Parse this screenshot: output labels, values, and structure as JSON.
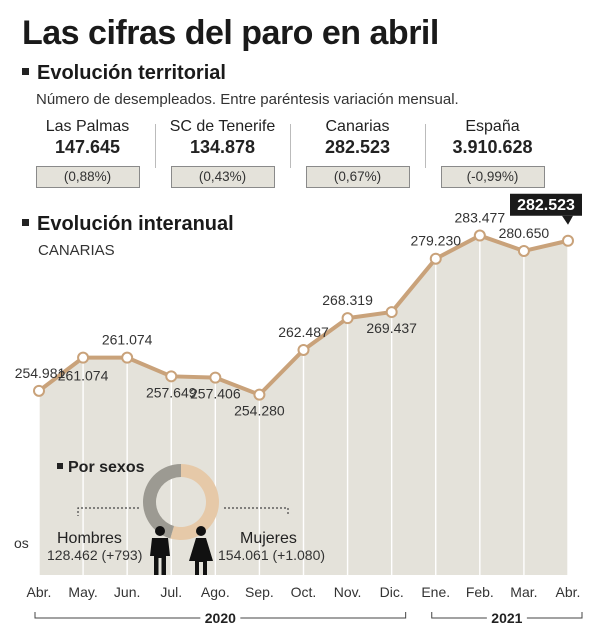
{
  "header": {
    "title": "Las cifras del paro en abril",
    "territorial_heading": "Evolución territorial",
    "territorial_sub": "Número de desempleados. Entre paréntesis variación mensual.",
    "interanual_heading": "Evolución interanual",
    "interanual_sub": "CANARIAS"
  },
  "regions": [
    {
      "name": "Las Palmas",
      "value": "147.645",
      "variation": "(0,88%)"
    },
    {
      "name": "SC de Tenerife",
      "value": "134.878",
      "variation": "(0,43%)"
    },
    {
      "name": "Canarias",
      "value": "282.523",
      "variation": "(0,67%)"
    },
    {
      "name": "España",
      "value": "3.910.628",
      "variation": "(-0,99%)"
    }
  ],
  "chart_data": {
    "type": "line",
    "title": "Evolución interanual",
    "subtitle": "CANARIAS",
    "categories": [
      "Abr.",
      "May.",
      "Jun.",
      "Jul.",
      "Ago.",
      "Sep.",
      "Oct.",
      "Nov.",
      "Dic.",
      "Ene.",
      "Feb.",
      "Mar.",
      "Abr."
    ],
    "values": [
      254981,
      261074,
      261074,
      257649,
      257406,
      254280,
      262487,
      268319,
      269437,
      279230,
      283477,
      280650,
      282523
    ],
    "value_labels": [
      "254.981",
      "261.074",
      "261.074",
      "257.649",
      "257.406",
      "254.280",
      "262.487",
      "268.319",
      "269.437",
      "279.230",
      "283.477",
      "280.650",
      "282.523"
    ],
    "year_labels": [
      {
        "label": "2020",
        "span": [
          0,
          8
        ]
      },
      {
        "label": "2021",
        "span": [
          9,
          12
        ]
      }
    ],
    "highlight_last": true,
    "colors": {
      "line": "#c9a27a",
      "area": "#e4e2da",
      "grid": "#ffffff",
      "highlight_bg": "#1a1a1a"
    }
  },
  "by_sex": {
    "heading": "Por sexos",
    "men": {
      "label": "Hombres",
      "detail": "128.462 (+793)",
      "value": 128462,
      "color": "#9c9a92"
    },
    "women": {
      "label": "Mujeres",
      "detail": "154.061 (+1.080)",
      "value": 154061,
      "color": "#e6c9a8"
    },
    "cut_text": "os"
  }
}
